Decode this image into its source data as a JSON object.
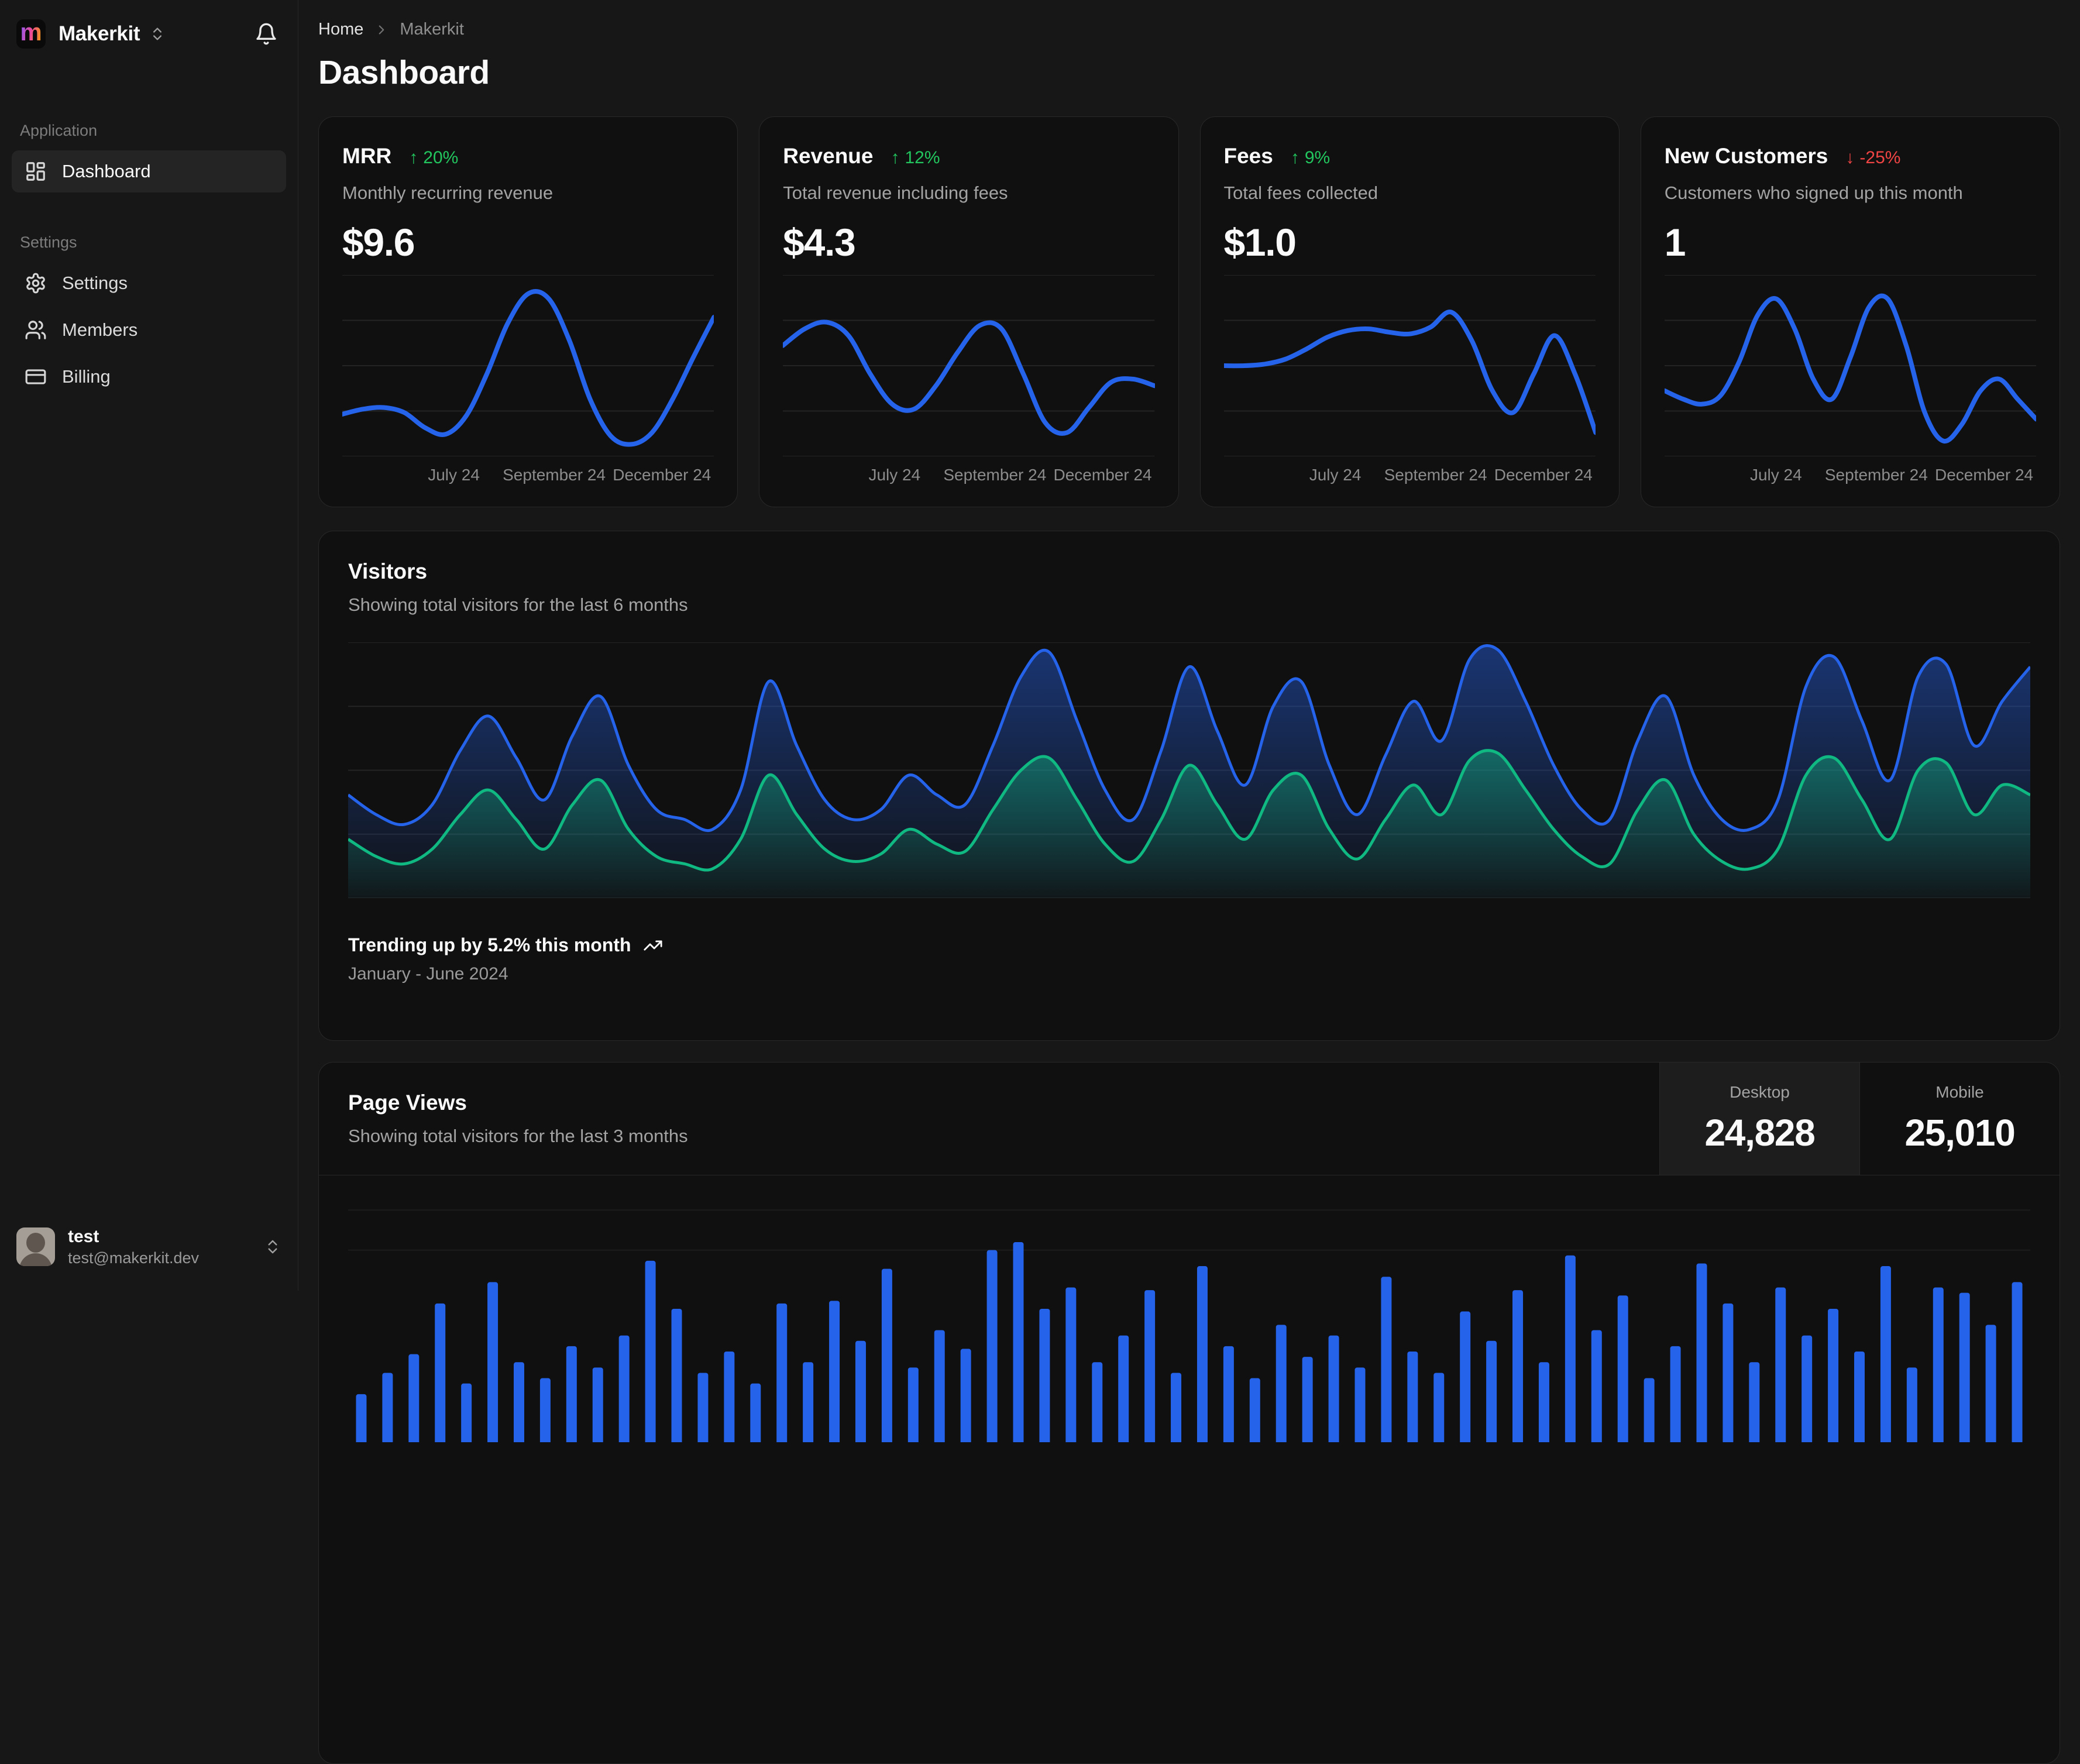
{
  "sidebar": {
    "workspace": "Makerkit",
    "logo_letter": "m",
    "section_application": "Application",
    "section_settings": "Settings",
    "nav_dashboard": "Dashboard",
    "nav_settings": "Settings",
    "nav_members": "Members",
    "nav_billing": "Billing"
  },
  "breadcrumb": {
    "home": "Home",
    "current": "Makerkit"
  },
  "page_title": "Dashboard",
  "stat_cards": [
    {
      "title": "MRR",
      "delta_arrow": "↑",
      "delta": "20%",
      "trend": "up",
      "subtitle": "Monthly recurring revenue",
      "value": "$9.6",
      "x_ticks": [
        "July 24",
        "September 24",
        "December 24"
      ]
    },
    {
      "title": "Revenue",
      "delta_arrow": "↑",
      "delta": "12%",
      "trend": "up",
      "subtitle": "Total revenue including fees",
      "value": "$4.3",
      "x_ticks": [
        "July 24",
        "September 24",
        "December 24"
      ]
    },
    {
      "title": "Fees",
      "delta_arrow": "↑",
      "delta": "9%",
      "trend": "up",
      "subtitle": "Total fees collected",
      "value": "$1.0",
      "x_ticks": [
        "July 24",
        "September 24",
        "December 24"
      ]
    },
    {
      "title": "New Customers",
      "delta_arrow": "↓",
      "delta": "-25%",
      "trend": "down",
      "subtitle": "Customers who signed up this month",
      "value": "1",
      "x_ticks": [
        "July 24",
        "September 24",
        "December 24"
      ]
    }
  ],
  "visitors": {
    "title": "Visitors",
    "subtitle": "Showing total visitors for the last 6 months",
    "trend_text": "Trending up by 5.2% this month",
    "period": "January - June 2024"
  },
  "page_views": {
    "title": "Page Views",
    "subtitle": "Showing total visitors for the last 3 months",
    "tabs": [
      {
        "label": "Desktop",
        "value": "24,828",
        "selected": true
      },
      {
        "label": "Mobile",
        "value": "25,010",
        "selected": false
      }
    ]
  },
  "user": {
    "name": "test",
    "email": "test@makerkit.dev"
  },
  "colors": {
    "accent_blue": "#2563eb",
    "area_green": "#10b981",
    "positive_green": "#22c55e",
    "negative_red": "#ef4444",
    "card_bg": "#101010",
    "page_bg": "#171717",
    "border": "#282828"
  },
  "chart_data": [
    {
      "id": "mrr-spark",
      "type": "line",
      "color": "#2563eb",
      "grid": [
        0,
        0.25,
        0.5,
        0.75,
        1
      ],
      "grid_color": "#242424",
      "x_ticks": [
        "July 24",
        "September 24",
        "December 24"
      ],
      "values": [
        21,
        24,
        25,
        22,
        13,
        9,
        20,
        45,
        75,
        93,
        90,
        65,
        30,
        8,
        3,
        10,
        30,
        55,
        79
      ]
    },
    {
      "id": "revenue-spark",
      "type": "line",
      "color": "#2563eb",
      "grid": [
        0,
        0.25,
        0.5,
        0.75,
        1
      ],
      "grid_color": "#242424",
      "x_ticks": [
        "July 24",
        "September 24",
        "December 24"
      ],
      "values": [
        62,
        72,
        76,
        68,
        45,
        27,
        24,
        38,
        58,
        74,
        72,
        45,
        16,
        10,
        25,
        40,
        42,
        38
      ]
    },
    {
      "id": "fees-spark",
      "type": "line",
      "color": "#2563eb",
      "grid": [
        0,
        0.25,
        0.5,
        0.75,
        1
      ],
      "grid_color": "#242424",
      "x_ticks": [
        "July 24",
        "September 24",
        "December 24"
      ],
      "values": [
        50,
        50,
        51,
        54,
        60,
        67,
        71,
        72,
        70,
        69,
        73,
        82,
        65,
        35,
        22,
        45,
        68,
        45,
        10
      ]
    },
    {
      "id": "customers-spark",
      "type": "line",
      "color": "#2563eb",
      "grid": [
        0,
        0.25,
        0.5,
        0.75,
        1
      ],
      "grid_color": "#242424",
      "x_ticks": [
        "July 24",
        "September 24",
        "December 24"
      ],
      "values": [
        35,
        30,
        27,
        32,
        52,
        80,
        90,
        72,
        42,
        30,
        55,
        85,
        90,
        62,
        22,
        5,
        15,
        35,
        42,
        30,
        18
      ]
    },
    {
      "id": "visitors-area",
      "type": "area",
      "grid": [
        0,
        0.25,
        0.5,
        0.75,
        1
      ],
      "grid_color": "#242424",
      "series": [
        {
          "name": "desktop",
          "color": "#2563eb",
          "values": [
            40,
            32,
            28,
            36,
            58,
            72,
            55,
            38,
            64,
            80,
            52,
            34,
            30,
            26,
            42,
            86,
            60,
            38,
            30,
            34,
            48,
            40,
            36,
            60,
            88,
            98,
            70,
            42,
            30,
            58,
            92,
            66,
            44,
            76,
            86,
            52,
            32,
            56,
            78,
            62,
            95,
            99,
            78,
            52,
            34,
            30,
            62,
            80,
            48,
            30,
            26,
            38,
            84,
            96,
            70,
            46,
            88,
            93,
            60,
            78,
            92
          ]
        },
        {
          "name": "mobile",
          "color": "#10b981",
          "values": [
            22,
            15,
            12,
            18,
            32,
            42,
            30,
            18,
            36,
            46,
            26,
            15,
            12,
            10,
            22,
            48,
            32,
            18,
            13,
            16,
            26,
            20,
            17,
            34,
            50,
            55,
            38,
            20,
            13,
            30,
            52,
            36,
            22,
            42,
            48,
            26,
            14,
            30,
            44,
            32,
            54,
            57,
            42,
            26,
            15,
            12,
            34,
            46,
            24,
            13,
            10,
            18,
            48,
            55,
            38,
            22,
            50,
            53,
            32,
            44,
            40
          ]
        }
      ]
    },
    {
      "id": "pageviews-bars",
      "type": "bar",
      "color": "#2563eb",
      "grid": [
        0.13,
        0.28
      ],
      "grid_color": "#1c1c1c",
      "values": [
        18,
        26,
        33,
        52,
        22,
        60,
        30,
        24,
        36,
        28,
        40,
        68,
        50,
        26,
        34,
        22,
        52,
        30,
        53,
        38,
        65,
        28,
        42,
        35,
        72,
        75,
        50,
        58,
        30,
        40,
        57,
        26,
        66,
        36,
        24,
        44,
        32,
        40,
        28,
        62,
        34,
        26,
        49,
        38,
        57,
        30,
        70,
        42,
        55,
        24,
        36,
        67,
        52,
        30,
        58,
        40,
        50,
        34,
        66,
        28,
        58,
        56,
        44,
        60
      ]
    }
  ]
}
